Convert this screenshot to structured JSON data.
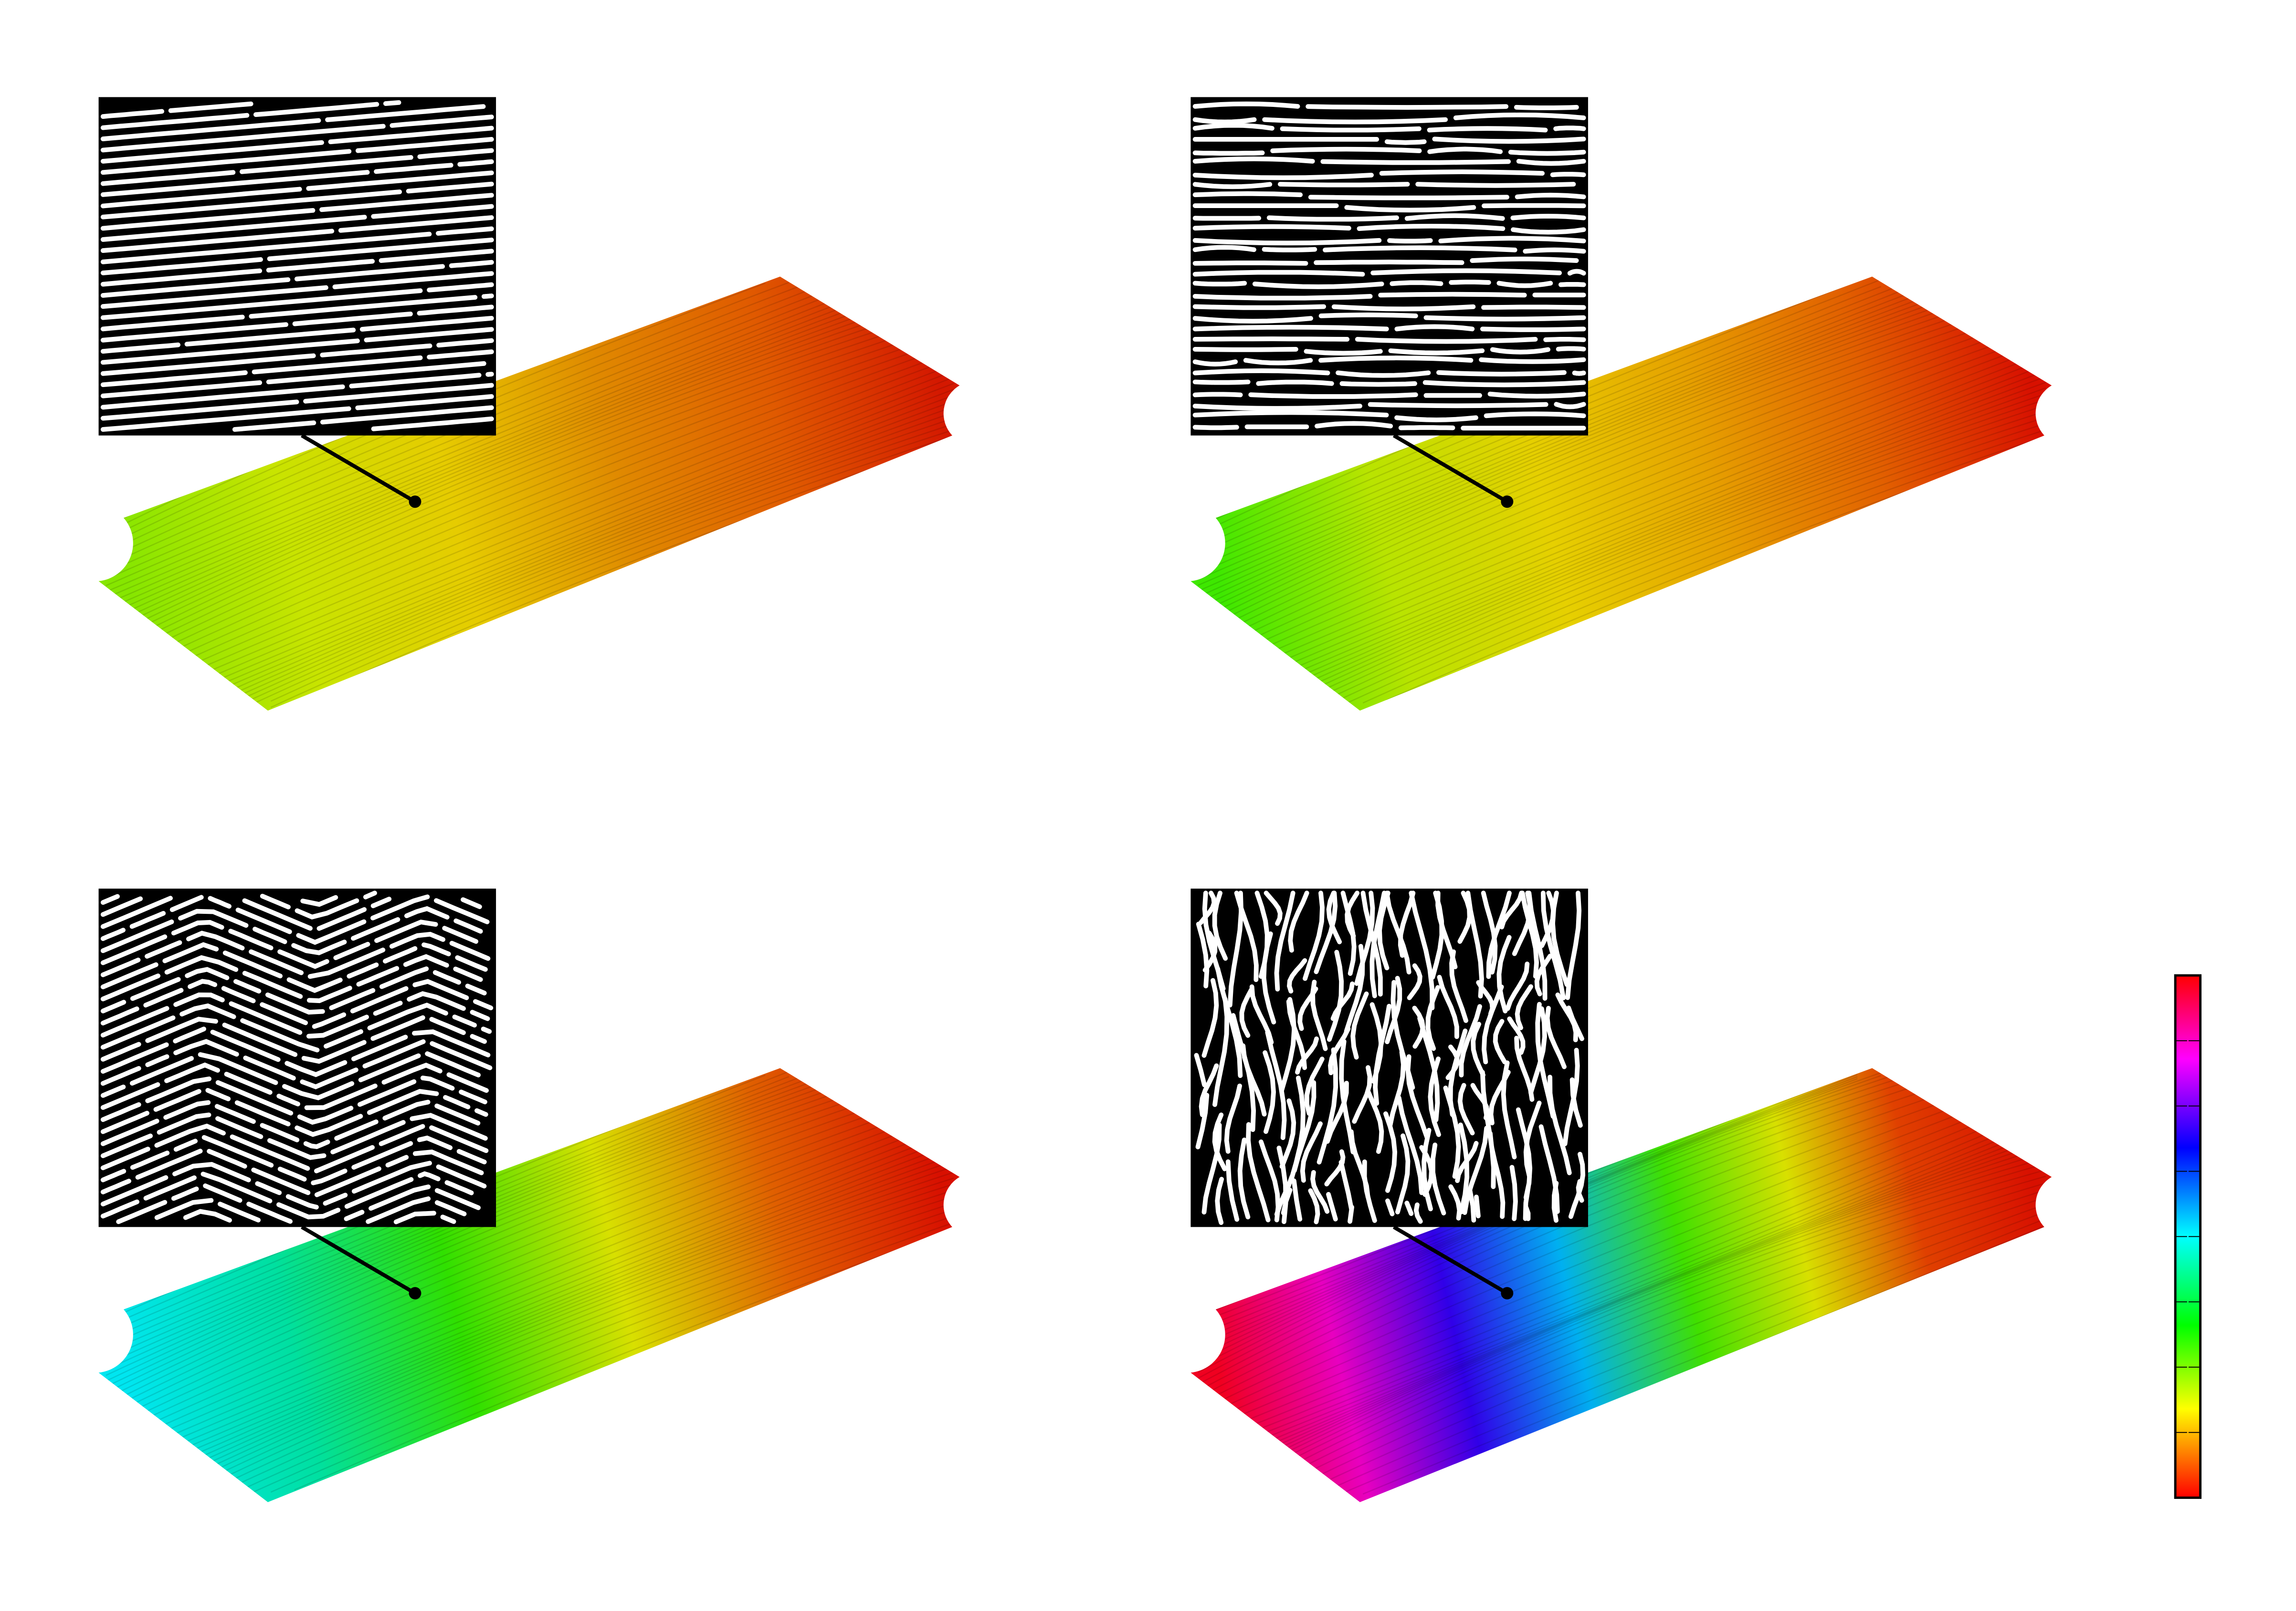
{
  "figure": {
    "background": "#ffffff",
    "panels": [
      {
        "id": "top-left",
        "inset_pattern": "tilted-parallel-stripes",
        "plate_colors": [
          "#86e600",
          "#c8e400",
          "#e6cc00",
          "#e08a00",
          "#e05a00",
          "#d41800"
        ]
      },
      {
        "id": "top-right",
        "inset_pattern": "horizontal-stripes-with-defects",
        "plate_colors": [
          "#3ee800",
          "#b8e400",
          "#e6d000",
          "#e6a000",
          "#e26000",
          "#d81000"
        ]
      },
      {
        "id": "bottom-left",
        "inset_pattern": "chevron-stripes",
        "plate_colors": [
          "#00e6f0",
          "#00e0a0",
          "#30e000",
          "#d8e000",
          "#e06000",
          "#d81000"
        ]
      },
      {
        "id": "bottom-right",
        "inset_pattern": "labyrinth-stripes",
        "plate_colors": [
          "#f00020",
          "#e800c0",
          "#3000e8",
          "#00b0f0",
          "#40e000",
          "#d8e000",
          "#e04000",
          "#d81000"
        ]
      }
    ],
    "colorbar": {
      "colors": [
        "#ff0000",
        "#ff0080",
        "#ff00ff",
        "#0000ff",
        "#00ffff",
        "#00ff00",
        "#ffff00",
        "#ff0000"
      ],
      "tick_count": 7
    }
  }
}
